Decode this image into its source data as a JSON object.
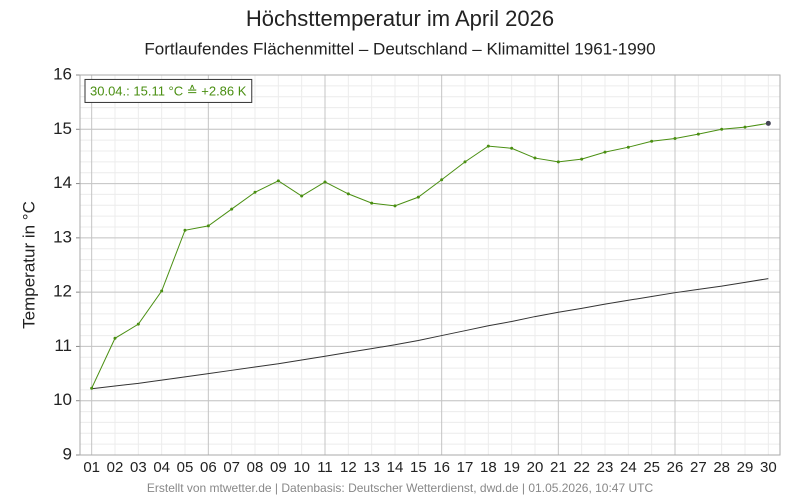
{
  "chart_data": {
    "type": "line",
    "title": "Höchsttemperatur im April 2026",
    "subtitle": "Fortlaufendes Flächenmittel – Deutschland – Klimamittel 1961-1990",
    "y_label": "Temperatur in °C",
    "annotation": "30.04.: 15.11 °C ≙ +2.86 K",
    "footer": "Erstellt von mtwetter.de | Datenbasis: Deutscher Wetterdienst, dwd.de | 01.05.2026, 10:47 UTC",
    "categories": [
      "01",
      "02",
      "03",
      "04",
      "05",
      "06",
      "07",
      "08",
      "09",
      "10",
      "11",
      "12",
      "13",
      "14",
      "15",
      "16",
      "17",
      "18",
      "19",
      "20",
      "21",
      "22",
      "23",
      "24",
      "25",
      "26",
      "27",
      "28",
      "29",
      "30"
    ],
    "series": [
      {
        "color": "#4a8f12",
        "markers": true,
        "values": [
          10.23,
          11.15,
          11.41,
          12.02,
          13.14,
          13.22,
          13.53,
          13.84,
          14.05,
          13.77,
          14.03,
          13.81,
          13.64,
          13.59,
          13.75,
          14.07,
          14.4,
          14.69,
          14.65,
          14.47,
          14.4,
          14.45,
          14.58,
          14.67,
          14.78,
          14.83,
          14.91,
          15.0,
          15.04,
          15.11
        ]
      },
      {
        "color": "#333333",
        "markers": false,
        "values": [
          10.22,
          10.27,
          10.32,
          10.38,
          10.44,
          10.5,
          10.56,
          10.62,
          10.68,
          10.75,
          10.82,
          10.89,
          10.96,
          11.03,
          11.11,
          11.2,
          11.29,
          11.38,
          11.46,
          11.55,
          11.63,
          11.7,
          11.78,
          11.85,
          11.92,
          11.99,
          12.05,
          12.11,
          12.18,
          12.25
        ]
      }
    ],
    "ylim": [
      9,
      16
    ],
    "yticks": [
      9,
      10,
      11,
      12,
      13,
      14,
      15,
      16
    ],
    "grid": true,
    "minor_grid": true
  }
}
